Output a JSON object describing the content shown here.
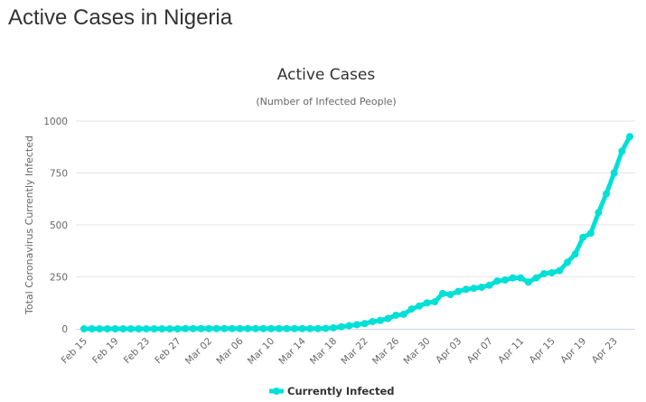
{
  "page": {
    "title": "Active Cases in Nigeria"
  },
  "colors": {
    "series": "#00e0d6",
    "grid": "#e6e6e6",
    "axis_line": "#ccd6eb",
    "text": "#333333",
    "muted": "#666666"
  },
  "chart_data": {
    "type": "line",
    "title": "Active Cases",
    "subtitle": "(Number of Infected People)",
    "xlabel": "",
    "ylabel": "Total Coronavirus Currently Infected",
    "ylim": [
      0,
      1000
    ],
    "yticks": [
      0,
      250,
      500,
      750,
      1000
    ],
    "grid": true,
    "legend": "bottom-center",
    "xtick_labels": [
      "Feb 15",
      "Feb 19",
      "Feb 23",
      "Feb 27",
      "Mar 02",
      "Mar 06",
      "Mar 10",
      "Mar 14",
      "Mar 18",
      "Mar 22",
      "Mar 26",
      "Mar 30",
      "Apr 03",
      "Apr 07",
      "Apr 11",
      "Apr 15",
      "Apr 19",
      "Apr 23"
    ],
    "xtick_every": 4,
    "x": [
      "Feb 15",
      "Feb 16",
      "Feb 17",
      "Feb 18",
      "Feb 19",
      "Feb 20",
      "Feb 21",
      "Feb 22",
      "Feb 23",
      "Feb 24",
      "Feb 25",
      "Feb 26",
      "Feb 27",
      "Feb 28",
      "Feb 29",
      "Mar 01",
      "Mar 02",
      "Mar 03",
      "Mar 04",
      "Mar 05",
      "Mar 06",
      "Mar 07",
      "Mar 08",
      "Mar 09",
      "Mar 10",
      "Mar 11",
      "Mar 12",
      "Mar 13",
      "Mar 14",
      "Mar 15",
      "Mar 16",
      "Mar 17",
      "Mar 18",
      "Mar 19",
      "Mar 20",
      "Mar 21",
      "Mar 22",
      "Mar 23",
      "Mar 24",
      "Mar 25",
      "Mar 26",
      "Mar 27",
      "Mar 28",
      "Mar 29",
      "Mar 30",
      "Mar 31",
      "Apr 01",
      "Apr 02",
      "Apr 03",
      "Apr 04",
      "Apr 05",
      "Apr 06",
      "Apr 07",
      "Apr 08",
      "Apr 09",
      "Apr 10",
      "Apr 11",
      "Apr 12",
      "Apr 13",
      "Apr 14",
      "Apr 15",
      "Apr 16",
      "Apr 17",
      "Apr 18",
      "Apr 19",
      "Apr 20",
      "Apr 21",
      "Apr 22",
      "Apr 23",
      "Apr 24",
      "Apr 25"
    ],
    "series": [
      {
        "name": "Currently Infected",
        "values": [
          0,
          0,
          0,
          0,
          0,
          0,
          0,
          0,
          0,
          0,
          0,
          0,
          0,
          1,
          1,
          1,
          1,
          1,
          1,
          1,
          1,
          1,
          1,
          1,
          1,
          1,
          1,
          1,
          1,
          1,
          1,
          2,
          5,
          10,
          15,
          20,
          25,
          35,
          40,
          50,
          65,
          70,
          95,
          110,
          125,
          130,
          170,
          165,
          180,
          190,
          195,
          200,
          210,
          230,
          235,
          245,
          245,
          225,
          245,
          265,
          270,
          280,
          320,
          360,
          440,
          460,
          560,
          650,
          750,
          855,
          925
        ]
      }
    ]
  }
}
